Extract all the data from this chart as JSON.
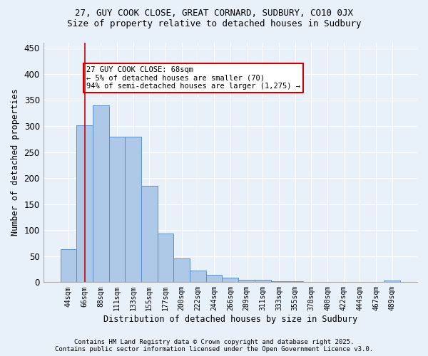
{
  "title1": "27, GUY COOK CLOSE, GREAT CORNARD, SUDBURY, CO10 0JX",
  "title2": "Size of property relative to detached houses in Sudbury",
  "xlabel": "Distribution of detached houses by size in Sudbury",
  "ylabel": "Number of detached properties",
  "bar_color": "#aec8e8",
  "bar_edge_color": "#5b8fc9",
  "bg_color": "#e8f0fa",
  "grid_color": "#ffffff",
  "categories": [
    "44sqm",
    "66sqm",
    "88sqm",
    "111sqm",
    "133sqm",
    "155sqm",
    "177sqm",
    "200sqm",
    "222sqm",
    "244sqm",
    "266sqm",
    "289sqm",
    "311sqm",
    "333sqm",
    "355sqm",
    "378sqm",
    "400sqm",
    "422sqm",
    "444sqm",
    "467sqm",
    "489sqm"
  ],
  "values": [
    63,
    302,
    340,
    279,
    279,
    185,
    93,
    45,
    23,
    14,
    8,
    5,
    4,
    2,
    2,
    1,
    1,
    0,
    1,
    0,
    3
  ],
  "annotation_text": "27 GUY COOK CLOSE: 68sqm\n← 5% of detached houses are smaller (70)\n94% of semi-detached houses are larger (1,275) →",
  "annotation_box_color": "#ffffff",
  "annotation_box_edge": "#cc0000",
  "vline_x": 1,
  "vline_color": "#cc0000",
  "ylim": [
    0,
    460
  ],
  "yticks": [
    0,
    50,
    100,
    150,
    200,
    250,
    300,
    350,
    400,
    450
  ],
  "footer1": "Contains HM Land Registry data © Crown copyright and database right 2025.",
  "footer2": "Contains public sector information licensed under the Open Government Licence v3.0."
}
